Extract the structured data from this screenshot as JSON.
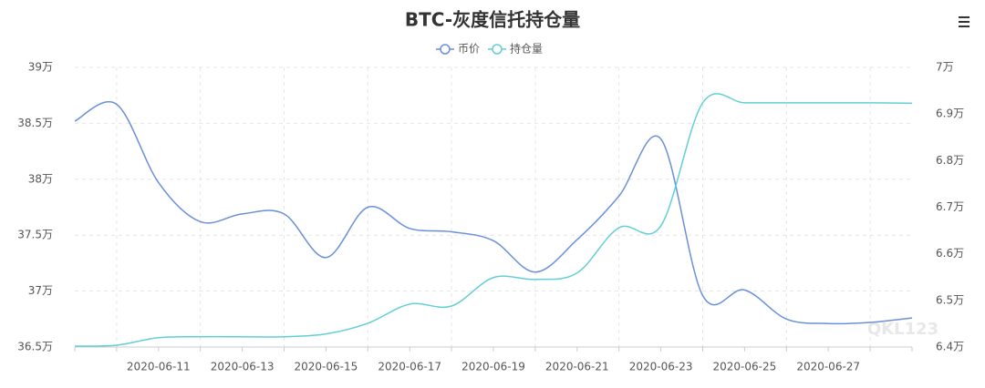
{
  "chart_data": {
    "type": "line",
    "title": "BTC-灰度信托持仓量",
    "watermark": "QKL123",
    "categories": [
      null,
      null,
      "2020-06-11",
      null,
      "2020-06-13",
      null,
      "2020-06-15",
      null,
      "2020-06-17",
      null,
      "2020-06-19",
      null,
      "2020-06-21",
      null,
      "2020-06-23",
      null,
      "2020-06-25",
      null,
      "2020-06-27",
      null,
      null
    ],
    "series": [
      {
        "name": "币价",
        "color": "#6a90d8",
        "values": [
          38.52,
          38.67,
          37.97,
          37.62,
          37.69,
          37.69,
          37.3,
          37.75,
          37.56,
          37.53,
          37.45,
          37.17,
          37.46,
          37.85,
          38.36,
          36.96,
          37.01,
          36.75,
          36.71,
          36.72,
          36.76
        ]
      },
      {
        "name": "持仓量",
        "color": "#62cfd6",
        "axis": "y2",
        "values": [
          6.402,
          6.404,
          6.42,
          6.422,
          6.422,
          6.422,
          6.428,
          6.451,
          6.492,
          6.488,
          6.549,
          6.545,
          6.559,
          6.656,
          6.66,
          6.924,
          6.924,
          6.924,
          6.924,
          6.924,
          6.923
        ]
      }
    ],
    "ylim": [
      36.5,
      39
    ],
    "yticks": [
      {
        "value": 36.5,
        "label": "36.5万"
      },
      {
        "value": 37,
        "label": "37万"
      },
      {
        "value": 37.5,
        "label": "37.5万"
      },
      {
        "value": 38,
        "label": "38万"
      },
      {
        "value": 38.5,
        "label": "38.5万"
      },
      {
        "value": 39,
        "label": "39万"
      }
    ],
    "y2lim": [
      6.4,
      7
    ],
    "y2ticks": [
      {
        "value": 6.4,
        "label": "6.4万"
      },
      {
        "value": 6.5,
        "label": "6.5万"
      },
      {
        "value": 6.6,
        "label": "6.6万"
      },
      {
        "value": 6.7,
        "label": "6.7万"
      },
      {
        "value": 6.8,
        "label": "6.8万"
      },
      {
        "value": 6.9,
        "label": "6.9万"
      },
      {
        "value": 7,
        "label": "7万"
      }
    ],
    "grid": true
  }
}
